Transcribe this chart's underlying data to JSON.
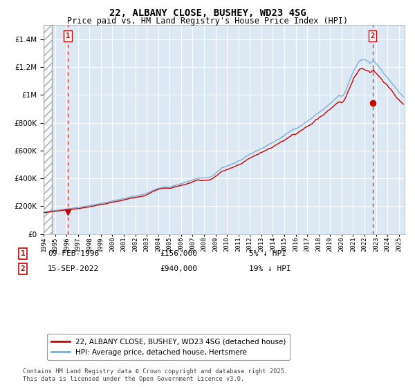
{
  "title": "22, ALBANY CLOSE, BUSHEY, WD23 4SG",
  "subtitle": "Price paid vs. HM Land Registry's House Price Index (HPI)",
  "legend_line1": "22, ALBANY CLOSE, BUSHEY, WD23 4SG (detached house)",
  "legend_line2": "HPI: Average price, detached house, Hertsmere",
  "annotation1_date": "09-FEB-1996",
  "annotation1_price": "£156,000",
  "annotation1_hpi": "5% ↓ HPI",
  "annotation2_date": "15-SEP-2022",
  "annotation2_price": "£940,000",
  "annotation2_hpi": "19% ↓ HPI",
  "footer": "Contains HM Land Registry data © Crown copyright and database right 2025.\nThis data is licensed under the Open Government Licence v3.0.",
  "bg_color": "#dce9f5",
  "hpi_color": "#7bafd4",
  "price_color": "#cc0000",
  "ylim": [
    0,
    1500000
  ],
  "sale1_x": 1996.1,
  "sale1_y": 156000,
  "sale2_x": 2022.71,
  "sale2_y": 940000,
  "xmin": 1994,
  "xmax": 2025.5
}
